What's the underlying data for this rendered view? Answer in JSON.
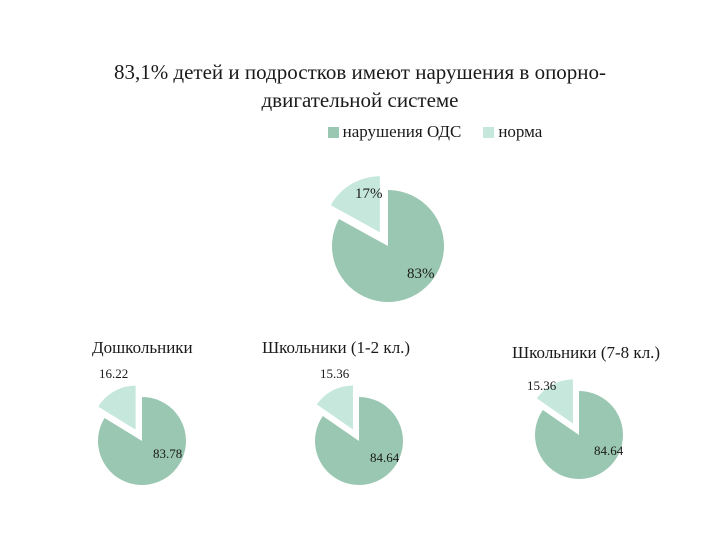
{
  "title_line1": "83,1% детей и подростков имеют нарушения в опорно-",
  "title_line2": "двигательной системе",
  "colors": {
    "disorder": "#9ac7b1",
    "normal": "#c6e8dc"
  },
  "chart_data": [
    {
      "type": "pie",
      "title": "",
      "categories": [
        "нарушения ОДС",
        "норма"
      ],
      "values": [
        83,
        17
      ],
      "data_labels": [
        "83%",
        "17%"
      ],
      "legend": "top"
    },
    {
      "type": "pie",
      "title": "Дошкольники",
      "categories": [
        "нарушения ОДС",
        "норма"
      ],
      "values": [
        83.78,
        16.22
      ],
      "data_labels": [
        "83.78",
        "16.22"
      ]
    },
    {
      "type": "pie",
      "title": "Школьники (1-2 кл.)",
      "categories": [
        "нарушения ОДС",
        "норма"
      ],
      "values": [
        84.64,
        15.36
      ],
      "data_labels": [
        "84.64",
        "15.36"
      ]
    },
    {
      "type": "pie",
      "title": "Школьники (7-8 кл.)",
      "categories": [
        "нарушения ОДС",
        "норма"
      ],
      "values": [
        84.64,
        15.36
      ],
      "data_labels": [
        "84.64",
        "15.36"
      ]
    }
  ]
}
